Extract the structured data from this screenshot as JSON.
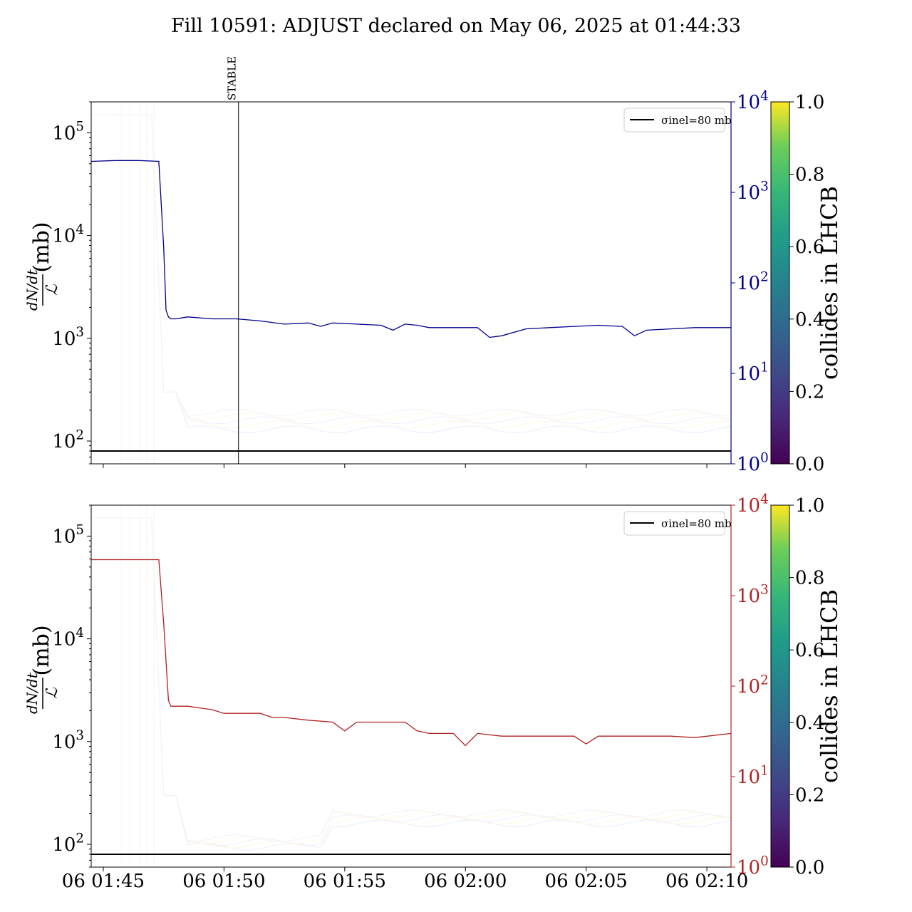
{
  "title": "Fill 10591: ADJUST declared on May 06, 2025 at 01:44:33",
  "chart_data": [
    {
      "type": "line",
      "panel": "top",
      "ylabel": "(mb)",
      "ylabel_fraction": {
        "numerator": "dN/dt",
        "denominator": "ℒ"
      },
      "yscale": "log",
      "ylim": [
        60,
        200000
      ],
      "y_ticks": [
        "10^2",
        "10^3",
        "10^4",
        "10^5"
      ],
      "y2scale": "log",
      "y2lim": [
        1,
        10000
      ],
      "y2_ticks": [
        "10^0",
        "10^1",
        "10^2",
        "10^3",
        "10^4"
      ],
      "y2_color": "#00008b",
      "xlim_min": [
        0,
        26.5
      ],
      "x_ticks_shown": false,
      "annotation": {
        "label": "STABLE",
        "x_min": 6.1
      },
      "hline": {
        "y": 80,
        "legend": "σinel=80 mb",
        "legend_loc": "upper right"
      },
      "series": [
        {
          "color": "#00008b",
          "axis": "right",
          "x": [
            0,
            1,
            2,
            2.8,
            3,
            3.1,
            3.2,
            3.3,
            3.5,
            4,
            5,
            6,
            7,
            8,
            9,
            9.5,
            10,
            11,
            12,
            12.5,
            13,
            13.5,
            14,
            15,
            16,
            16.5,
            17,
            18,
            19,
            20,
            21,
            22,
            22.5,
            23,
            24,
            25,
            26.5
          ],
          "y": [
            2200,
            2250,
            2250,
            2200,
            250,
            50,
            42,
            40,
            40,
            42,
            40,
            40,
            38,
            35,
            36,
            33,
            36,
            35,
            34,
            30,
            35,
            34,
            32,
            32,
            32,
            25,
            26,
            31,
            32,
            33,
            34,
            33,
            26,
            30,
            31,
            32,
            32
          ]
        }
      ],
      "colorbar": {
        "label": "collides in LHCB",
        "min": 0.0,
        "max": 1.0,
        "ticks": [
          "0.0",
          "0.2",
          "0.4",
          "0.6",
          "0.8",
          "1.0"
        ]
      }
    },
    {
      "type": "line",
      "panel": "bottom",
      "ylabel": "(mb)",
      "ylabel_fraction": {
        "numerator": "dN/dt",
        "denominator": "ℒ"
      },
      "yscale": "log",
      "ylim": [
        60,
        200000
      ],
      "y_ticks": [
        "10^2",
        "10^3",
        "10^4",
        "10^5"
      ],
      "y2scale": "log",
      "y2lim": [
        1,
        10000
      ],
      "y2_ticks": [
        "10^0",
        "10^1",
        "10^2",
        "10^3",
        "10^4"
      ],
      "y2_color": "#b22222",
      "xlim_min": [
        0,
        26.5
      ],
      "x_tick_labels": [
        "06 01:45",
        "06 01:50",
        "06 01:55",
        "06 02:00",
        "06 02:05",
        "06 02:10"
      ],
      "x_tick_values_min": [
        0.5,
        5.5,
        10.5,
        15.5,
        20.5,
        25.5
      ],
      "hline": {
        "y": 80,
        "legend": "σinel=80 mb",
        "legend_loc": "upper right"
      },
      "series": [
        {
          "color": "#b22222",
          "axis": "right",
          "x": [
            0,
            1,
            2,
            2.8,
            3,
            3.2,
            3.3,
            4,
            5,
            5.5,
            6,
            7,
            7.5,
            8,
            9,
            10,
            10.5,
            11,
            12,
            13,
            13.5,
            14,
            15,
            15.5,
            16,
            17,
            18,
            19,
            20,
            20.5,
            21,
            22,
            23,
            24,
            25,
            26.5
          ],
          "y": [
            2500,
            2500,
            2500,
            2500,
            500,
            70,
            60,
            60,
            55,
            50,
            50,
            50,
            45,
            45,
            42,
            40,
            32,
            40,
            40,
            40,
            32,
            30,
            30,
            22,
            30,
            28,
            28,
            28,
            28,
            23,
            28,
            28,
            28,
            28,
            27,
            30
          ]
        }
      ],
      "colorbar": {
        "label": "collides in LHCB",
        "min": 0.0,
        "max": 1.0,
        "ticks": [
          "0.0",
          "0.2",
          "0.4",
          "0.6",
          "0.8",
          "1.0"
        ]
      }
    }
  ]
}
